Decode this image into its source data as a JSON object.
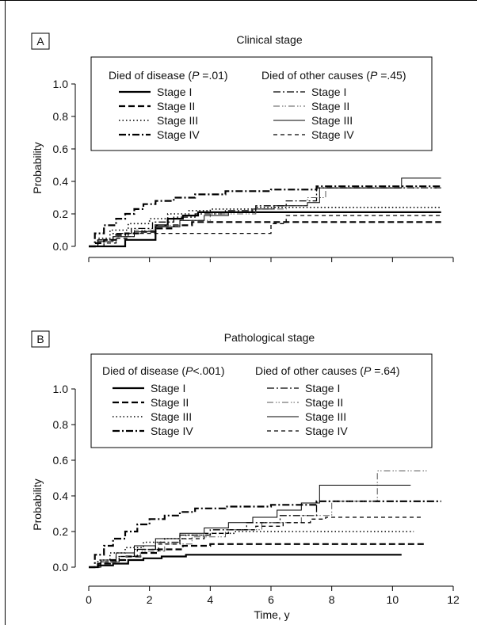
{
  "chart_data": [
    {
      "type": "line",
      "panel_label": "A",
      "title": "Clinical stage",
      "xlabel": "",
      "ylabel": "Probability",
      "xlim": [
        0,
        12
      ],
      "ylim": [
        0,
        1.0
      ],
      "yticks": [
        "0.0",
        "0.2",
        "0.4",
        "0.6",
        "0.8",
        "1.0"
      ],
      "xticks": [],
      "legend": {
        "placement": "top",
        "group_disease": {
          "prefix": "Died of disease (",
          "p_letter": "P",
          "p_value": " =.01)"
        },
        "group_other": {
          "prefix": "Died of other causes (",
          "p_letter": "P",
          "p_value": " =.45)"
        }
      },
      "series": [
        {
          "name": "Stage I",
          "group": "disease",
          "style": "solid-thick",
          "x": [
            0,
            0.25,
            0.5,
            1.2,
            1.2,
            2.2,
            2.2,
            2.6,
            3.1,
            3.6,
            3.6,
            4.3,
            11.6
          ],
          "y": [
            0.0,
            0.0,
            0.0,
            0.04,
            0.04,
            0.08,
            0.13,
            0.17,
            0.19,
            0.2,
            0.21,
            0.21,
            0.21
          ]
        },
        {
          "name": "Stage II",
          "group": "disease",
          "style": "dashed-thick",
          "x": [
            0,
            0.2,
            0.5,
            0.9,
            1.2,
            1.7,
            2.2,
            2.8,
            3.4,
            11.6
          ],
          "y": [
            0.0,
            0.02,
            0.04,
            0.07,
            0.08,
            0.09,
            0.11,
            0.13,
            0.15,
            0.15
          ]
        },
        {
          "name": "Stage III",
          "group": "disease",
          "style": "dotted",
          "x": [
            0,
            0.3,
            0.7,
            1.3,
            2.0,
            2.6,
            3.3,
            4.0,
            5.5,
            11.6
          ],
          "y": [
            0.0,
            0.05,
            0.1,
            0.14,
            0.17,
            0.2,
            0.22,
            0.23,
            0.24,
            0.24
          ]
        },
        {
          "name": "Stage IV",
          "group": "disease",
          "style": "dashdot-thick",
          "x": [
            0,
            0.2,
            0.5,
            0.9,
            1.2,
            1.5,
            1.8,
            2.2,
            2.8,
            3.5,
            4.5,
            6.0,
            7.5,
            11.6
          ],
          "y": [
            0.0,
            0.08,
            0.13,
            0.17,
            0.2,
            0.23,
            0.26,
            0.28,
            0.3,
            0.32,
            0.34,
            0.35,
            0.37,
            0.37
          ]
        },
        {
          "name": "Stage I",
          "group": "other",
          "style": "dashdot-thin",
          "x": [
            0,
            0.3,
            0.8,
            1.4,
            2.1,
            2.8,
            3.5,
            4.5,
            5.5,
            6.5,
            7.5,
            11.6
          ],
          "y": [
            0.0,
            0.04,
            0.08,
            0.11,
            0.15,
            0.18,
            0.2,
            0.22,
            0.25,
            0.28,
            0.36,
            0.36
          ]
        },
        {
          "name": "Stage II",
          "group": "other",
          "style": "dashdotdot",
          "x": [
            0,
            0.3,
            0.8,
            1.5,
            2.2,
            3.0,
            4.0,
            5.5,
            6.5,
            7.2,
            7.8,
            11.6
          ],
          "y": [
            0.0,
            0.03,
            0.06,
            0.1,
            0.13,
            0.16,
            0.2,
            0.23,
            0.25,
            0.3,
            0.36,
            0.36
          ]
        },
        {
          "name": "Stage III",
          "group": "other",
          "style": "solid-thin",
          "x": [
            0,
            0.3,
            0.8,
            1.5,
            2.2,
            3.0,
            3.8,
            4.6,
            5.4,
            6.1,
            7.2,
            7.6,
            10.3,
            11.6
          ],
          "y": [
            0.0,
            0.03,
            0.06,
            0.09,
            0.12,
            0.16,
            0.19,
            0.21,
            0.23,
            0.25,
            0.27,
            0.36,
            0.42,
            0.42
          ]
        },
        {
          "name": "Stage IV",
          "group": "other",
          "style": "dashed-thin",
          "x": [
            0,
            0.5,
            0.9,
            1.3,
            2.2,
            3.2,
            4.2,
            5.1,
            6.0,
            6.5,
            11.6
          ],
          "y": [
            0.0,
            0.02,
            0.05,
            0.08,
            0.08,
            0.08,
            0.08,
            0.08,
            0.14,
            0.19,
            0.19
          ]
        }
      ]
    },
    {
      "type": "line",
      "panel_label": "B",
      "title": "Pathological stage",
      "xlabel": "Time, y",
      "ylabel": "Probability",
      "xlim": [
        0,
        12
      ],
      "ylim": [
        0,
        1.0
      ],
      "yticks": [
        "0.0",
        "0.2",
        "0.4",
        "0.6",
        "0.8",
        "1.0"
      ],
      "xticks": [
        "0",
        "2",
        "4",
        "6",
        "8",
        "10",
        "12"
      ],
      "legend": {
        "placement": "top",
        "group_disease": {
          "prefix": "Died of disease (",
          "p_letter": "P",
          "p_value": "<.001)"
        },
        "group_other": {
          "prefix": "Died of other causes (",
          "p_letter": "P",
          "p_value": " =.64)"
        }
      },
      "series": [
        {
          "name": "Stage I",
          "group": "disease",
          "style": "solid-thick",
          "x": [
            0,
            0.3,
            0.8,
            1.3,
            1.8,
            2.4,
            3.2,
            10.3
          ],
          "y": [
            0.0,
            0.01,
            0.02,
            0.04,
            0.05,
            0.06,
            0.07,
            0.07
          ]
        },
        {
          "name": "Stage II",
          "group": "disease",
          "style": "dashed-thick",
          "x": [
            0,
            0.3,
            0.7,
            1.2,
            1.7,
            2.3,
            3.1,
            4.0,
            11.1
          ],
          "y": [
            0.0,
            0.02,
            0.04,
            0.06,
            0.08,
            0.1,
            0.12,
            0.13,
            0.13
          ]
        },
        {
          "name": "Stage III",
          "group": "disease",
          "style": "dotted",
          "x": [
            0,
            0.3,
            0.7,
            1.2,
            1.8,
            2.5,
            3.2,
            4.0,
            4.8,
            10.7
          ],
          "y": [
            0.0,
            0.04,
            0.08,
            0.11,
            0.14,
            0.16,
            0.18,
            0.19,
            0.2,
            0.2
          ]
        },
        {
          "name": "Stage IV",
          "group": "disease",
          "style": "dashdot-thick",
          "x": [
            0,
            0.2,
            0.5,
            0.8,
            1.2,
            1.6,
            2.0,
            2.5,
            3.0,
            3.5,
            4.5,
            6.0,
            7.5,
            11.6
          ],
          "y": [
            0.0,
            0.07,
            0.12,
            0.16,
            0.2,
            0.24,
            0.27,
            0.29,
            0.31,
            0.33,
            0.34,
            0.35,
            0.37,
            0.37
          ]
        },
        {
          "name": "Stage I",
          "group": "other",
          "style": "dashdot-thin",
          "x": [
            0,
            0.4,
            0.9,
            1.5,
            2.2,
            3.0,
            4.0,
            5.2,
            6.3,
            7.5,
            11.6
          ],
          "y": [
            0.0,
            0.03,
            0.06,
            0.1,
            0.14,
            0.18,
            0.21,
            0.25,
            0.29,
            0.37,
            0.37
          ]
        },
        {
          "name": "Stage II",
          "group": "other",
          "style": "dashdotdot",
          "x": [
            0,
            0.4,
            1.0,
            1.7,
            2.5,
            3.4,
            4.5,
            5.7,
            7.0,
            8.0,
            9.5,
            11.2
          ],
          "y": [
            0.0,
            0.03,
            0.06,
            0.09,
            0.13,
            0.17,
            0.21,
            0.25,
            0.29,
            0.37,
            0.54,
            0.54
          ]
        },
        {
          "name": "Stage III",
          "group": "other",
          "style": "solid-thin",
          "x": [
            0,
            0.4,
            0.9,
            1.5,
            2.2,
            3.0,
            3.8,
            4.6,
            5.4,
            6.2,
            7.0,
            7.6,
            10.6
          ],
          "y": [
            0.0,
            0.04,
            0.08,
            0.12,
            0.16,
            0.19,
            0.22,
            0.25,
            0.28,
            0.32,
            0.36,
            0.46,
            0.46
          ]
        },
        {
          "name": "Stage IV",
          "group": "other",
          "style": "dashed-thin",
          "x": [
            0,
            0.4,
            1.0,
            1.6,
            2.3,
            3.0,
            3.8,
            4.6,
            5.5,
            6.4,
            7.3,
            7.8,
            11.0
          ],
          "y": [
            0.0,
            0.03,
            0.06,
            0.1,
            0.13,
            0.16,
            0.19,
            0.21,
            0.23,
            0.25,
            0.27,
            0.28,
            0.28
          ]
        }
      ]
    }
  ]
}
